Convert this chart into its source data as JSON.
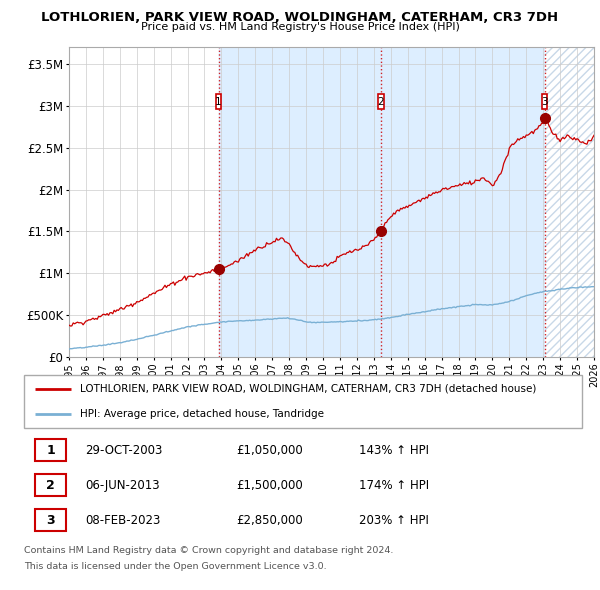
{
  "title": "LOTHLORIEN, PARK VIEW ROAD, WOLDINGHAM, CATERHAM, CR3 7DH",
  "subtitle": "Price paid vs. HM Land Registry's House Price Index (HPI)",
  "ylim": [
    0,
    3700000
  ],
  "yticks": [
    0,
    500000,
    1000000,
    1500000,
    2000000,
    2500000,
    3000000,
    3500000
  ],
  "ytick_labels": [
    "£0",
    "£500K",
    "£1M",
    "£1.5M",
    "£2M",
    "£2.5M",
    "£3M",
    "£3.5M"
  ],
  "sale_year_nums": [
    2003.831,
    2013.421,
    2023.1
  ],
  "sale_prices": [
    1050000,
    1500000,
    2850000
  ],
  "sale_labels": [
    "1",
    "2",
    "3"
  ],
  "sale_info": [
    {
      "num": "1",
      "date": "29-OCT-2003",
      "price": "£1,050,000",
      "hpi": "143% ↑ HPI"
    },
    {
      "num": "2",
      "date": "06-JUN-2013",
      "price": "£1,500,000",
      "hpi": "174% ↑ HPI"
    },
    {
      "num": "3",
      "date": "08-FEB-2023",
      "price": "£2,850,000",
      "hpi": "203% ↑ HPI"
    }
  ],
  "legend_line1": "LOTHLORIEN, PARK VIEW ROAD, WOLDINGHAM, CATERHAM, CR3 7DH (detached house)",
  "legend_line2": "HPI: Average price, detached house, Tandridge",
  "footer1": "Contains HM Land Registry data © Crown copyright and database right 2024.",
  "footer2": "This data is licensed under the Open Government Licence v3.0.",
  "sale_line_color": "#cc0000",
  "hpi_line_color": "#7ab0d4",
  "background_color": "#ffffff",
  "grid_color": "#cccccc",
  "vline_color": "#cc0000",
  "shade_color": "#ddeeff",
  "xmin": 1995.0,
  "xmax": 2026.0,
  "xtick_start": 1995,
  "xtick_end": 2026
}
